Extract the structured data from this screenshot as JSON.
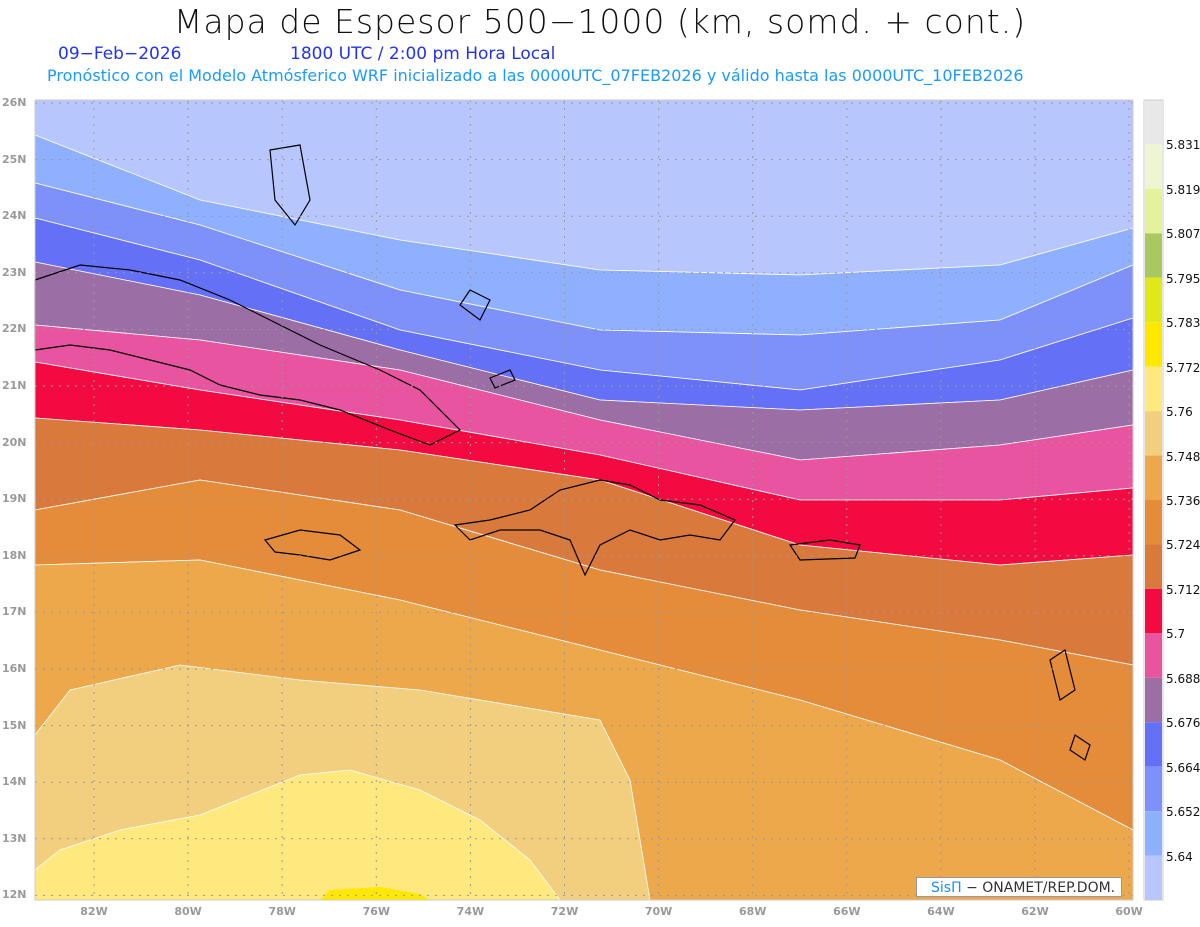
{
  "header": {
    "title": "Mapa de Espesor 500−1000 (km, somd. + cont.)",
    "date": "09−Feb−2026",
    "time": "1800 UTC / 2:00 pm Hora Local",
    "subtitle": "Pronóstico con el Modelo Atmósferico WRF inicializado a las 0000UTC_07FEB2026 y válido hasta las  0000UTC_10FEB2026"
  },
  "axes": {
    "lat_labels": [
      "26N",
      "25N",
      "24N",
      "23N",
      "22N",
      "21N",
      "20N",
      "19N",
      "18N",
      "17N",
      "16N",
      "15N",
      "14N",
      "13N",
      "12N"
    ],
    "lon_labels": [
      "82W",
      "80W",
      "78W",
      "76W",
      "74W",
      "72W",
      "70W",
      "68W",
      "66W",
      "64W",
      "62W",
      "60W"
    ]
  },
  "colorbar": {
    "labels": [
      "5.831",
      "5.819",
      "5.807",
      "5.795",
      "5.783",
      "5.772",
      "5.76",
      "5.748",
      "5.736",
      "5.724",
      "5.712",
      "5.7",
      "5.688",
      "5.676",
      "5.664",
      "5.652",
      "5.64"
    ],
    "colors": [
      "#e8e8e8",
      "#eef5d2",
      "#e4f29c",
      "#a9c862",
      "#e0e817",
      "#ffe800",
      "#ffe87e",
      "#f2cf7e",
      "#eca84a",
      "#e48c3a",
      "#d97a3c",
      "#f20a40",
      "#e854a0",
      "#9b6ea6",
      "#6470f6",
      "#7e90fa",
      "#8fb0ff",
      "#b7c6fd"
    ]
  },
  "credit": {
    "brand": "SisΠ",
    "text": "− ONAMET/REP.DOM."
  }
}
